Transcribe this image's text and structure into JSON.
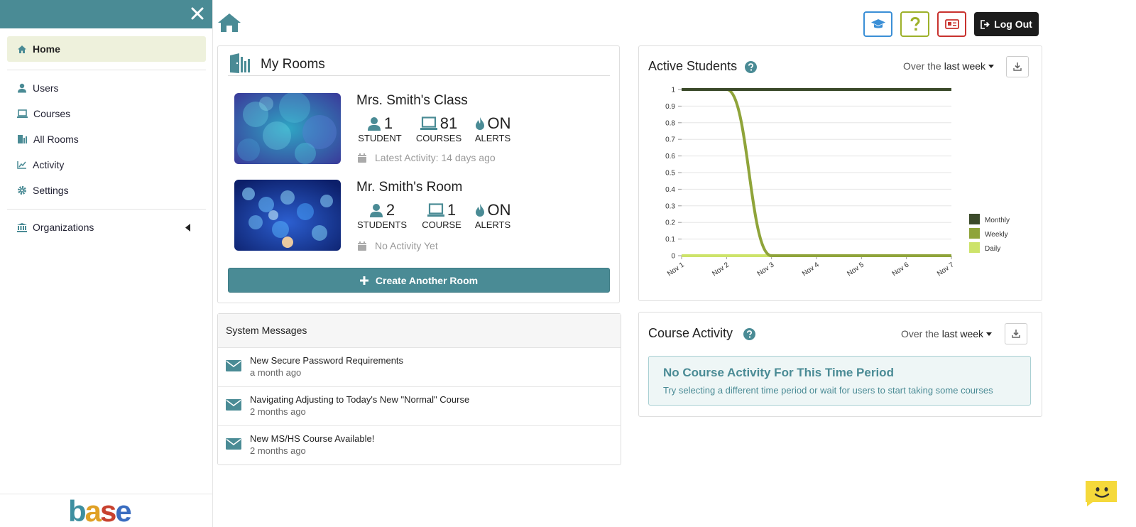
{
  "sidebar": {
    "items": [
      {
        "label": "Home",
        "icon": "home-icon"
      },
      {
        "label": "Users",
        "icon": "user-icon"
      },
      {
        "label": "Courses",
        "icon": "laptop-icon"
      },
      {
        "label": "All Rooms",
        "icon": "door-icon"
      },
      {
        "label": "Activity",
        "icon": "line-chart-icon"
      },
      {
        "label": "Settings",
        "icon": "gear-icon"
      },
      {
        "label": "Organizations",
        "icon": "bank-icon"
      }
    ],
    "logo_text": "base"
  },
  "topbar": {
    "logout_label": "Log Out"
  },
  "my_rooms": {
    "title": "My Rooms",
    "rooms": [
      {
        "name": "Mrs. Smith's Class",
        "students": "1",
        "students_label": "STUDENT",
        "courses": "81",
        "courses_label": "COURSES",
        "alerts": "ON",
        "alerts_label": "ALERTS",
        "activity": "Latest Activity: 14 days ago"
      },
      {
        "name": "Mr. Smith's Room",
        "students": "2",
        "students_label": "STUDENTS",
        "courses": "1",
        "courses_label": "COURSE",
        "alerts": "ON",
        "alerts_label": "ALERTS",
        "activity": "No Activity Yet"
      }
    ],
    "create_label": "Create Another Room"
  },
  "system_messages": {
    "title": "System Messages",
    "items": [
      {
        "title": "New Secure Password Requirements",
        "time": "a month ago"
      },
      {
        "title": "Navigating Adjusting to Today's New \"Normal\" Course",
        "time": "2 months ago"
      },
      {
        "title": "New MS/HS Course Available!",
        "time": "2 months ago"
      }
    ]
  },
  "active_students": {
    "title": "Active Students",
    "range_prefix": "Over the",
    "range_value": "last week"
  },
  "course_activity": {
    "title": "Course Activity",
    "range_prefix": "Over the",
    "range_value": "last week",
    "empty_title": "No Course Activity For This Time Period",
    "empty_text": "Try selecting a different time period or wait for users to start taking some courses"
  },
  "colors": {
    "teal": "#4a8b95",
    "monthly": "#3b4a2a",
    "weekly": "#8fa43a",
    "daily": "#cde36a"
  },
  "chart_data": {
    "type": "line",
    "x": [
      "Nov 1",
      "Nov 2",
      "Nov 3",
      "Nov 4",
      "Nov 5",
      "Nov 6",
      "Nov 7"
    ],
    "yticks": [
      "0",
      "0.1",
      "0.2",
      "0.3",
      "0.4",
      "0.5",
      "0.6",
      "0.7",
      "0.8",
      "0.9",
      "1"
    ],
    "ylim": [
      0,
      1
    ],
    "series": [
      {
        "name": "Monthly",
        "values": [
          1,
          1,
          1,
          1,
          1,
          1,
          1
        ],
        "color": "#3b4a2a"
      },
      {
        "name": "Weekly",
        "values": [
          1,
          1,
          0,
          0,
          0,
          0,
          0
        ],
        "color": "#8fa43a"
      },
      {
        "name": "Daily",
        "values": [
          0,
          0,
          0,
          0,
          0,
          0,
          0
        ],
        "color": "#cde36a"
      }
    ],
    "legend": "right",
    "grid": true
  }
}
